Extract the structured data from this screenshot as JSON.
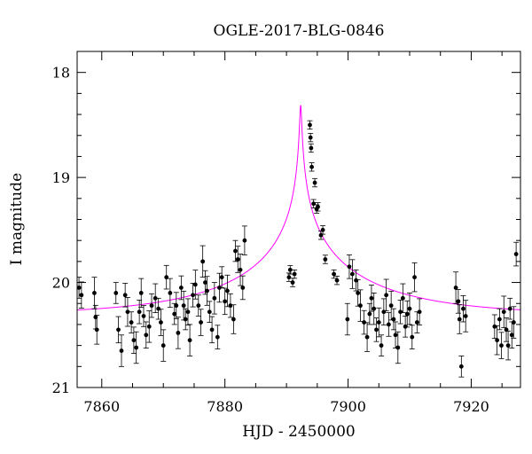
{
  "chart_data": {
    "type": "scatter",
    "title": "OGLE-2017-BLG-0846",
    "xlabel": "HJD - 2450000",
    "ylabel": "I magnitude",
    "xlim": [
      7856,
      7928
    ],
    "ylim": [
      21,
      17.8
    ],
    "y_inverted": true,
    "x_ticks": [
      7860,
      7880,
      7900,
      7920
    ],
    "y_ticks": [
      18,
      19,
      20,
      21
    ],
    "grid": false,
    "point_color": "#000000",
    "model_color": "#ff00ff",
    "model": {
      "t0": 7892.3,
      "u0": 0.006,
      "tE": 24,
      "baseline_mag": 20.31,
      "mag_offset": 0.9
    },
    "series": [
      {
        "x": [
          7856.3,
          7856.7,
          7858.8,
          7859.0,
          7859.2,
          7862.3,
          7862.7,
          7863.2,
          7863.8,
          7864.2,
          7864.8,
          7865.2,
          7865.6,
          7866.1,
          7866.4,
          7866.8,
          7867.2,
          7867.7,
          7868.1,
          7868.7,
          7869.2,
          7869.6,
          7870.0,
          7870.5,
          7871.1,
          7871.8,
          7872.1,
          7872.4,
          7872.9,
          7873.3,
          7873.6,
          7874.0,
          7874.3,
          7874.8,
          7875.2,
          7875.7,
          7876.1,
          7876.4,
          7876.8,
          7877.1,
          7877.5,
          7877.9,
          7878.3,
          7878.8,
          7879.1,
          7879.5,
          7880.0,
          7880.4,
          7880.9,
          7881.4,
          7881.7,
          7882.1,
          7882.5,
          7882.9,
          7883.2,
          7890.4,
          7890.6,
          7891.0,
          7891.3,
          7893.8,
          7893.9,
          7894.0,
          7894.1,
          7894.4,
          7894.6,
          7894.9,
          7895.1,
          7895.6,
          7895.9,
          7896.3,
          7897.7,
          7898.2,
          7899.9,
          7900.2,
          7900.7,
          7901.3,
          7901.6,
          7902.0,
          7902.6,
          7903.1,
          7903.5,
          7903.8,
          7904.2,
          7904.6,
          7905.0,
          7905.4,
          7905.8,
          7906.2,
          7906.6,
          7907.0,
          7907.4,
          7907.7,
          7908.1,
          7908.5,
          7908.9,
          7909.3,
          7909.6,
          7910.0,
          7910.4,
          7910.8,
          7911.2,
          7911.6,
          7917.5,
          7917.9,
          7918.1,
          7918.4,
          7918.7,
          7919.1,
          7923.8,
          7924.2,
          7924.6,
          7924.9,
          7925.3,
          7925.7,
          7926.0,
          7926.3,
          7926.6,
          7926.9,
          7927.3
        ],
        "y": [
          20.05,
          20.12,
          20.1,
          20.33,
          20.45,
          20.1,
          20.45,
          20.65,
          20.12,
          20.28,
          20.38,
          20.55,
          20.62,
          20.28,
          20.1,
          20.32,
          20.5,
          20.42,
          20.22,
          20.15,
          20.25,
          20.38,
          20.6,
          19.95,
          20.1,
          20.3,
          20.22,
          20.48,
          20.05,
          20.22,
          20.35,
          20.28,
          20.55,
          20.12,
          20.02,
          20.22,
          20.38,
          19.8,
          20.0,
          20.08,
          20.28,
          20.45,
          20.15,
          20.52,
          20.05,
          19.95,
          20.18,
          20.08,
          20.22,
          20.35,
          19.7,
          19.78,
          19.88,
          20.05,
          19.6,
          19.95,
          19.88,
          20.0,
          19.92,
          18.5,
          18.62,
          18.72,
          18.9,
          19.25,
          19.05,
          19.3,
          19.28,
          19.55,
          19.5,
          19.78,
          19.92,
          19.98,
          20.35,
          19.85,
          19.92,
          19.98,
          20.1,
          20.22,
          20.38,
          20.52,
          20.3,
          20.15,
          20.25,
          20.45,
          20.38,
          20.6,
          20.28,
          20.12,
          20.4,
          20.22,
          20.35,
          20.5,
          20.62,
          20.28,
          20.15,
          20.42,
          20.3,
          20.25,
          20.52,
          19.95,
          20.38,
          20.28,
          20.05,
          20.18,
          20.35,
          20.8,
          20.25,
          20.32,
          20.42,
          20.55,
          20.35,
          20.6,
          20.28,
          20.45,
          20.6,
          20.25,
          20.5,
          20.38,
          19.73
        ]
      }
    ]
  }
}
